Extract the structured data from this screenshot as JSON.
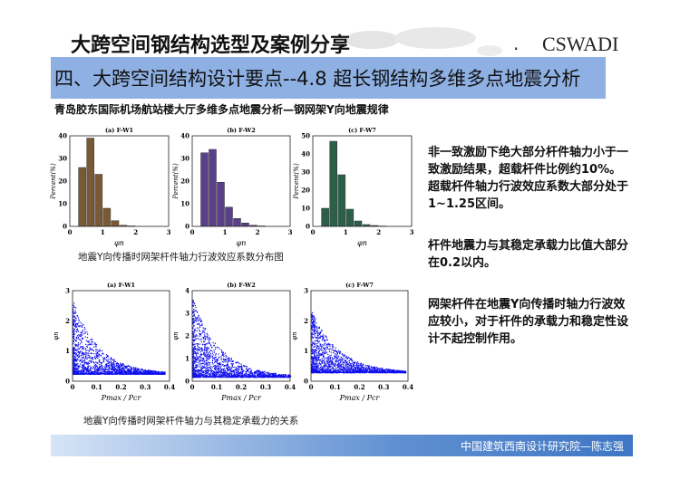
{
  "header": {
    "title": "大跨空间钢结构选型及案例分享",
    "logo": "CSWADI",
    "section_title": "四、大跨空间结构设计要点--4.8 超长钢结构多维多点地震分析",
    "subtitle": "青岛胶东国际机场航站楼大厅多维多点地震分析—钢网架Y向地震规律"
  },
  "captions": {
    "histograms": "地震Y向传播时网架杆件轴力行波效应系数分布图",
    "scatter": "地震Y向传播时网架杆件轴力与其稳定承载力的关系"
  },
  "notes": [
    "非一致激励下绝大部分杆件轴力小于一致激励结果，超载杆件比例约10%。超载杆件轴力行波效应系数大部分处于1~1.25区间。",
    "杆件地震力与其稳定承载力比值大部分在0.2以内。",
    "网架杆件在地震Y向传播时轴力行波效应较小，对于杆件的承载力和稳定性设计不起控制作用。"
  ],
  "footer": "中国建筑西南设计研究院—陈志强",
  "chart_data": [
    {
      "type": "bar",
      "title": "(a) F-W1",
      "xlabel": "φn",
      "ylabel": "Percent(%)",
      "xlim": [
        0,
        3
      ],
      "ylim": [
        0,
        40
      ],
      "xticks": [
        "0",
        "1",
        "2",
        "3"
      ],
      "yticks": [
        "0",
        "10",
        "20",
        "30",
        "40"
      ],
      "bin_centers": [
        0.375,
        0.625,
        0.875,
        1.125,
        1.375,
        1.625,
        1.875
      ],
      "values": [
        26,
        39,
        23,
        8,
        2.5,
        0.5,
        0.2
      ],
      "color": "#7a5a34"
    },
    {
      "type": "bar",
      "title": "(b) F-W2",
      "xlabel": "φn",
      "ylabel": "Percent(%)",
      "xlim": [
        0,
        3
      ],
      "ylim": [
        0,
        40
      ],
      "xticks": [
        "0",
        "1",
        "2",
        "3"
      ],
      "yticks": [
        "0",
        "10",
        "20",
        "30",
        "40"
      ],
      "bin_centers": [
        0.375,
        0.625,
        0.875,
        1.125,
        1.375,
        1.625,
        1.875,
        2.125
      ],
      "values": [
        32.5,
        34,
        19.5,
        8.5,
        3.5,
        1.5,
        0.5,
        0.2
      ],
      "color": "#5a3f8a"
    },
    {
      "type": "bar",
      "title": "(c) F-W7",
      "xlabel": "φn",
      "ylabel": "Percent(%)",
      "xlim": [
        0,
        3
      ],
      "ylim": [
        0,
        50
      ],
      "xticks": [
        "0",
        "1",
        "2",
        "3"
      ],
      "yticks": [
        "0",
        "10",
        "20",
        "30",
        "40",
        "50"
      ],
      "bin_centers": [
        0.375,
        0.625,
        0.875,
        1.125,
        1.375,
        1.625,
        1.875,
        2.125
      ],
      "values": [
        10,
        47,
        28.5,
        9.5,
        3,
        1,
        0.5,
        0.2
      ],
      "color": "#2c5e48"
    },
    {
      "type": "scatter",
      "title": "(a) F-W1",
      "xlabel": "Pmax / Pcr",
      "ylabel": "φn",
      "xlim": [
        0,
        0.4
      ],
      "ylim": [
        0,
        3
      ],
      "xticks": [
        "0",
        "0.1",
        "0.2",
        "0.3",
        "0.4"
      ],
      "yticks": [
        "0",
        "1",
        "2",
        "3"
      ],
      "color": "#1010ee",
      "ymin": 0.25,
      "ymax_at_zero": 2.6,
      "xmax": 0.38
    },
    {
      "type": "scatter",
      "title": "(b) F-W2",
      "xlabel": "Pmax / Pcr",
      "ylabel": "φn",
      "xlim": [
        0,
        0.4
      ],
      "ylim": [
        0,
        4
      ],
      "xticks": [
        "0",
        "0.1",
        "0.2",
        "0.3",
        "0.4"
      ],
      "yticks": [
        "0",
        "1",
        "2",
        "3",
        "4"
      ],
      "color": "#1010ee",
      "ymin": 0.2,
      "ymax_at_zero": 3.5,
      "xmax": 0.4
    },
    {
      "type": "scatter",
      "title": "(c) F-W7",
      "xlabel": "Pmax / Pcr",
      "ylabel": "φn",
      "xlim": [
        0,
        0.4
      ],
      "ylim": [
        0,
        3
      ],
      "xticks": [
        "0",
        "0.1",
        "0.2",
        "0.3",
        "0.4"
      ],
      "yticks": [
        "0",
        "1",
        "2",
        "3"
      ],
      "color": "#1010ee",
      "ymin": 0.3,
      "ymax_at_zero": 2.3,
      "xmax": 0.39
    }
  ]
}
